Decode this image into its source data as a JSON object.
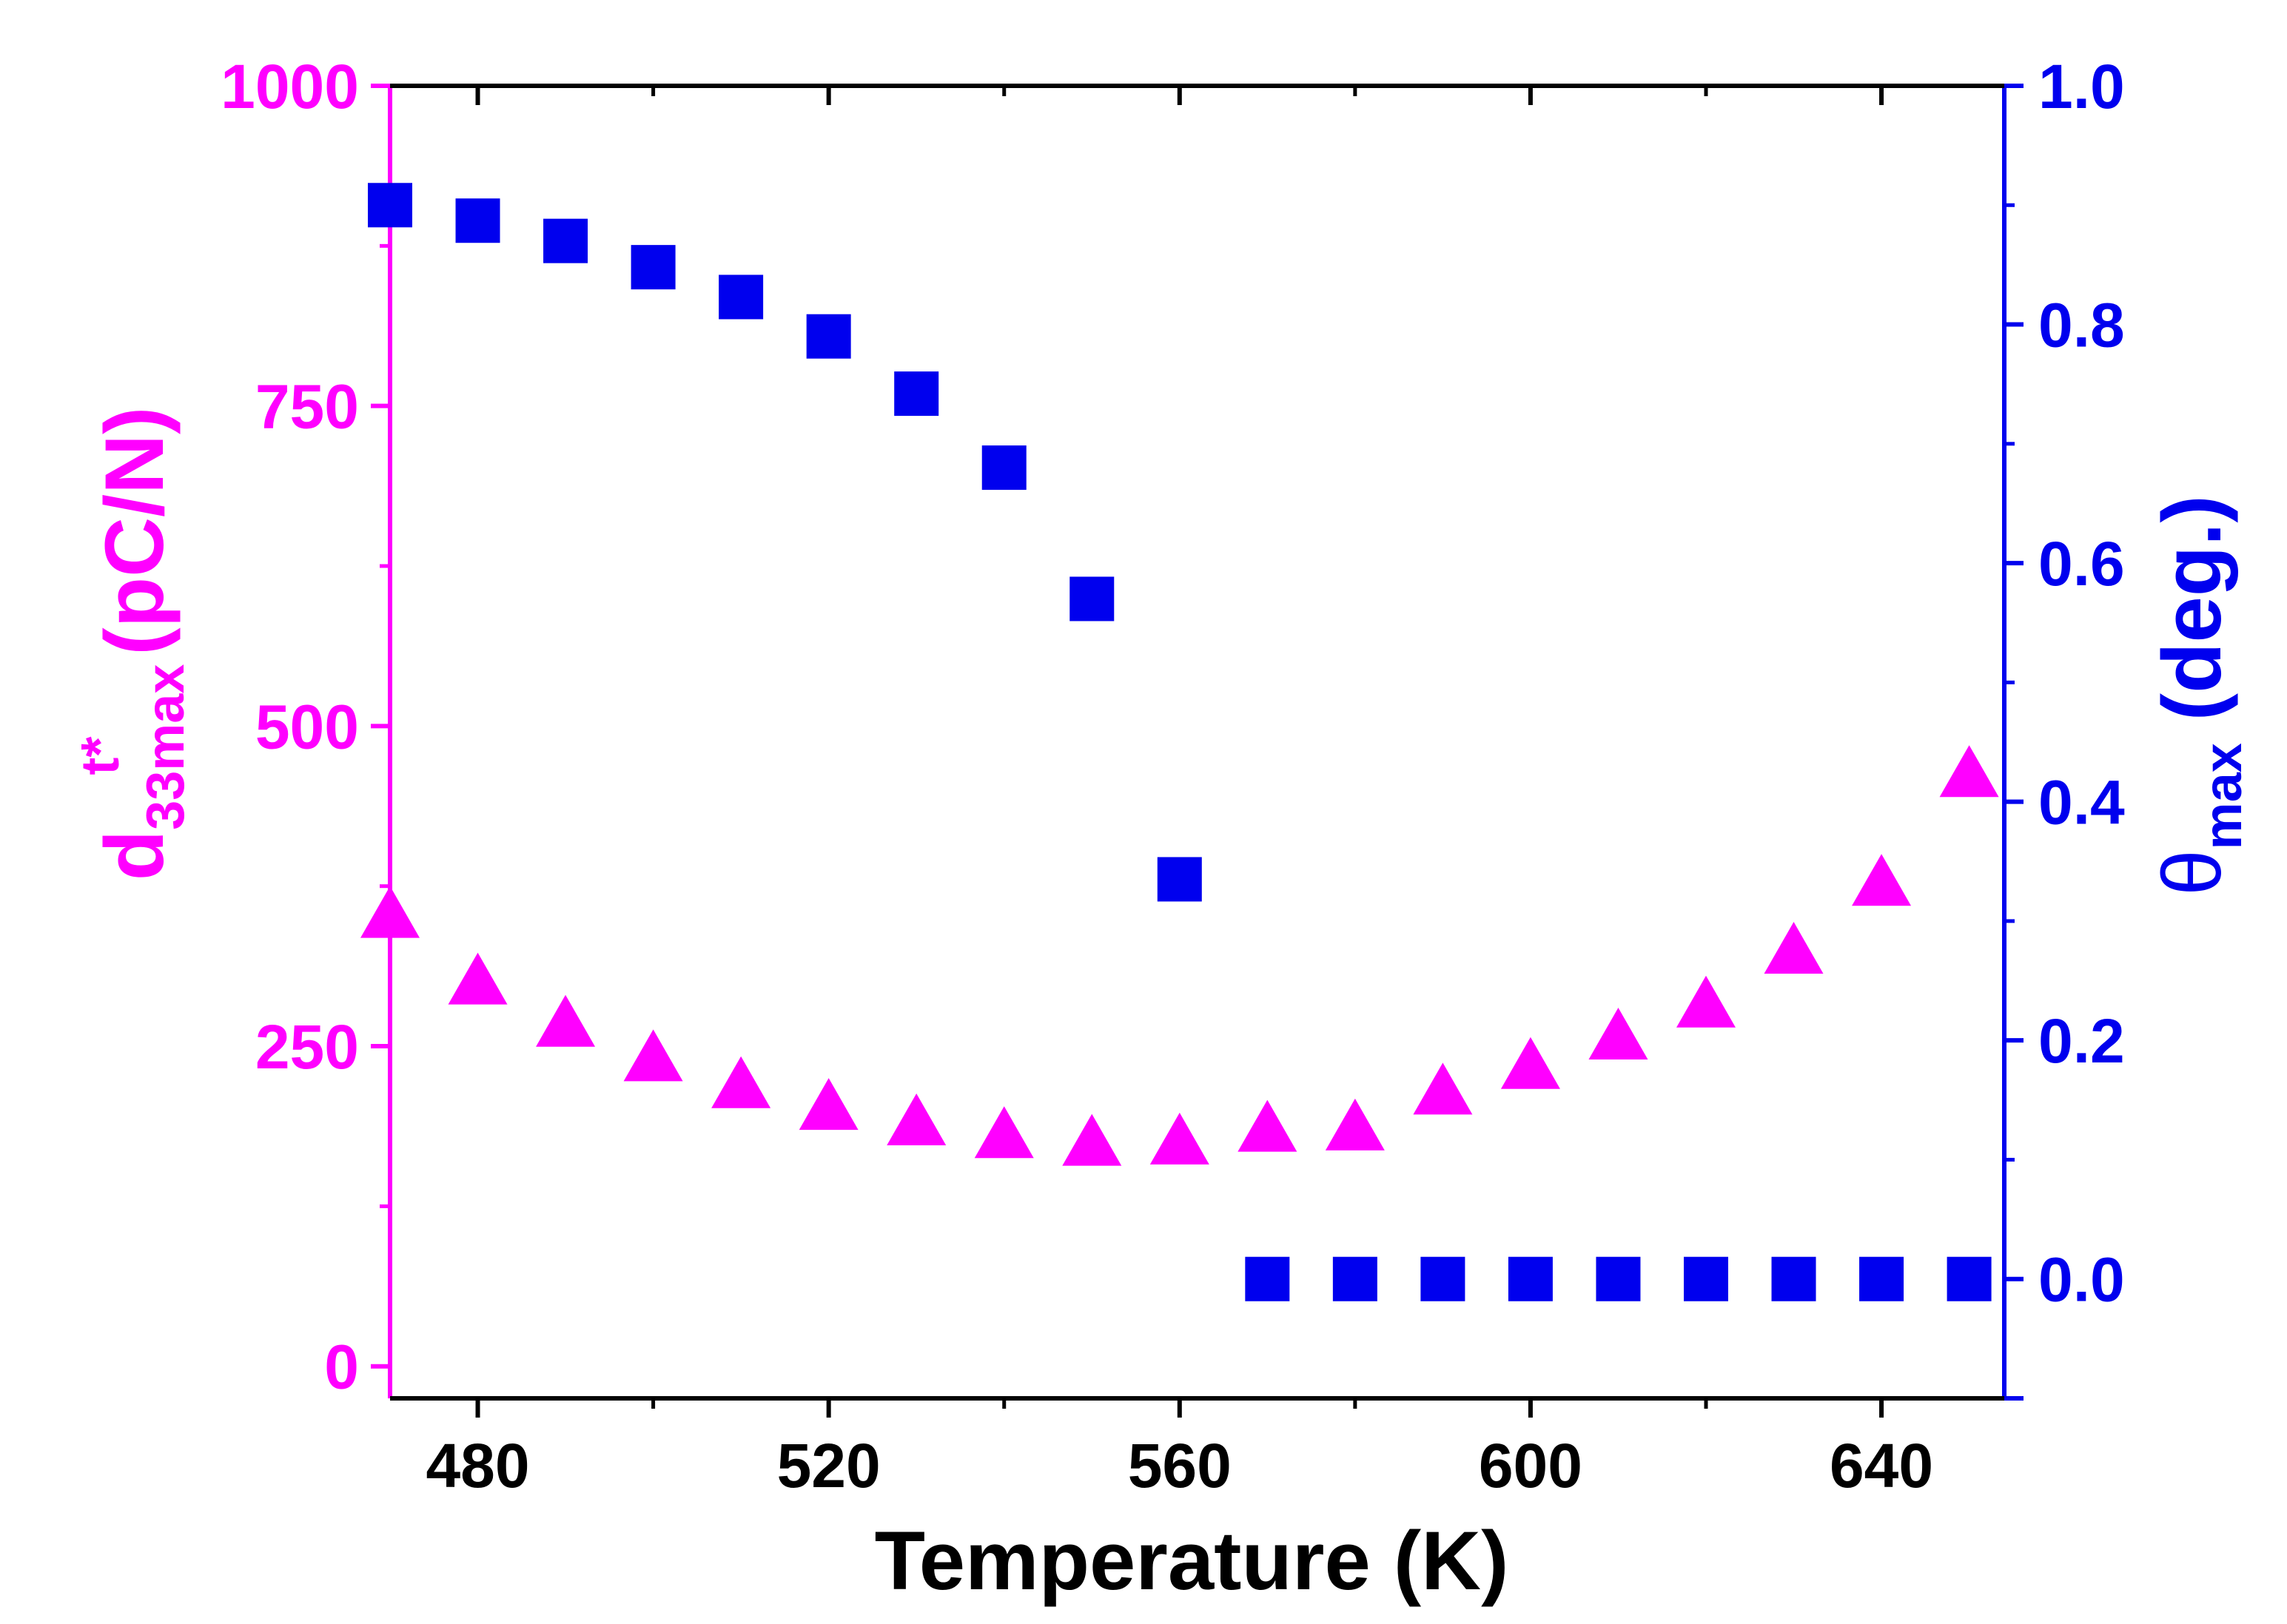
{
  "chart_data": {
    "type": "scatter",
    "x_axis": {
      "label": "Temperature (K)",
      "range": [
        470,
        654
      ],
      "ticks": [
        480,
        520,
        560,
        600,
        640
      ],
      "minor_ticks": [
        500,
        540,
        580,
        620
      ]
    },
    "y_left": {
      "label_main": "d",
      "label_sup": "t*",
      "label_sub": "33max",
      "label_unit": "(pC/N)",
      "range": [
        -25,
        1000
      ],
      "ticks": [
        0,
        250,
        500,
        750,
        1000
      ],
      "minor_ticks": [
        125,
        375,
        625,
        875
      ],
      "color": "#ff00ff"
    },
    "y_right": {
      "label_main": "θ",
      "label_sub": "max",
      "label_unit": "(deg.)",
      "range": [
        -0.1,
        1.0
      ],
      "ticks": [
        0.0,
        0.2,
        0.4,
        0.6,
        0.8,
        1.0
      ],
      "tick_labels": [
        "0.0",
        "0.2",
        "0.4",
        "0.6",
        "0.8",
        "1.0"
      ],
      "minor_ticks": [
        0.1,
        0.3,
        0.5,
        0.7,
        0.9
      ],
      "color": "#0000ee"
    },
    "series": [
      {
        "name": "d33max",
        "axis": "left",
        "marker": "triangle",
        "color": "#ff00ff",
        "x": [
          470,
          480,
          490,
          500,
          510,
          520,
          530,
          540,
          550,
          560,
          570,
          580,
          590,
          600,
          610,
          620,
          630,
          640,
          650
        ],
        "y": [
          350,
          298,
          265,
          238,
          217,
          200,
          188,
          178,
          172,
          173,
          183,
          184,
          212,
          232,
          255,
          280,
          322,
          375,
          460
        ]
      },
      {
        "name": "theta_max",
        "axis": "right",
        "marker": "square",
        "color": "#0000ee",
        "x": [
          470,
          480,
          490,
          500,
          510,
          520,
          530,
          540,
          550,
          560,
          570,
          580,
          590,
          600,
          610,
          620,
          630,
          640,
          650
        ],
        "y": [
          0.9,
          0.887,
          0.87,
          0.848,
          0.823,
          0.79,
          0.742,
          0.68,
          0.57,
          0.335,
          0.0,
          0.0,
          0.0,
          0.0,
          0.0,
          0.0,
          0.0,
          0.0,
          0.0
        ]
      }
    ]
  }
}
